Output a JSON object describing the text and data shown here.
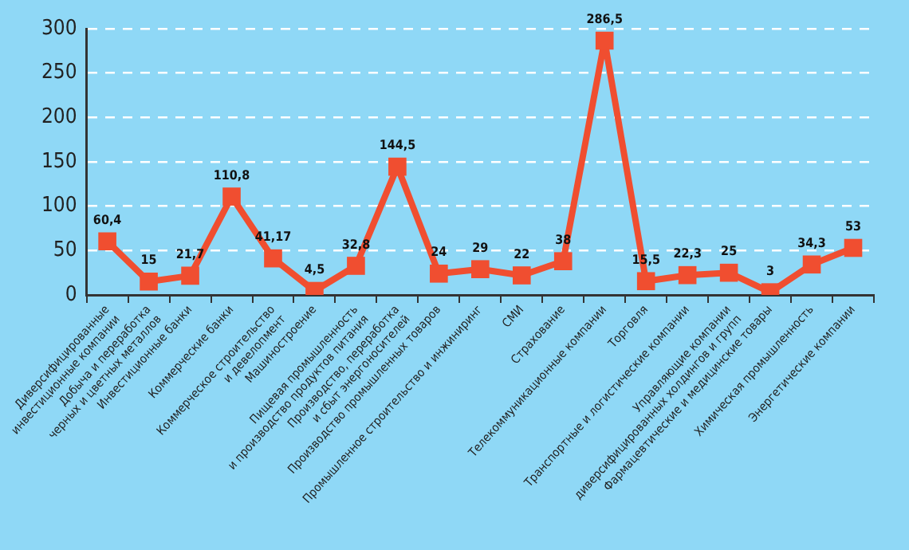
{
  "chart_data": {
    "type": "line",
    "categories": [
      "Диверсифицированные\nинвестиционные компании",
      "Добыча и переработка\nчерных и цветных металлов",
      "Инвестиционные банки",
      "Коммерческие банки",
      "Коммерческое строительство\nи девелопмент",
      "Машиностроение",
      "Пищевая промышленность\nи производство продуктов питания",
      "Производство, переработка\nи сбыт энергоносителей",
      "Производство промышленных товаров",
      "Промышленное строительство и инжиниринг",
      "СМИ",
      "Страхование",
      "Телекоммуникационные компании",
      "Торговля",
      "Транспортные и логистические компании",
      "Управляющие компании\nдиверсифицированных холдингов и групп",
      "Фармацевтические и медицинские товары",
      "Химическая промышленность",
      "Энергетические компании"
    ],
    "series": [
      {
        "color": "#f04e30",
        "values": [
          60.4,
          15,
          21.7,
          110.8,
          41.17,
          4.5,
          32.8,
          144.5,
          24,
          29,
          22,
          38,
          286.5,
          15.5,
          22.3,
          25,
          3,
          34.3,
          53
        ],
        "value_labels": [
          "60,4",
          "15",
          "21,7",
          "110,8",
          "41,17",
          "4,5",
          "32,8",
          "144,5",
          "24",
          "29",
          "22",
          "38",
          "286,5",
          "15,5",
          "22,3",
          "25",
          "3",
          "34,3",
          "53"
        ]
      }
    ],
    "ylim": [
      0,
      300
    ],
    "yticks": [
      0,
      50,
      100,
      150,
      200,
      250,
      300
    ],
    "grid": "y",
    "legend": false,
    "marker": "square",
    "line_style": "solid"
  }
}
